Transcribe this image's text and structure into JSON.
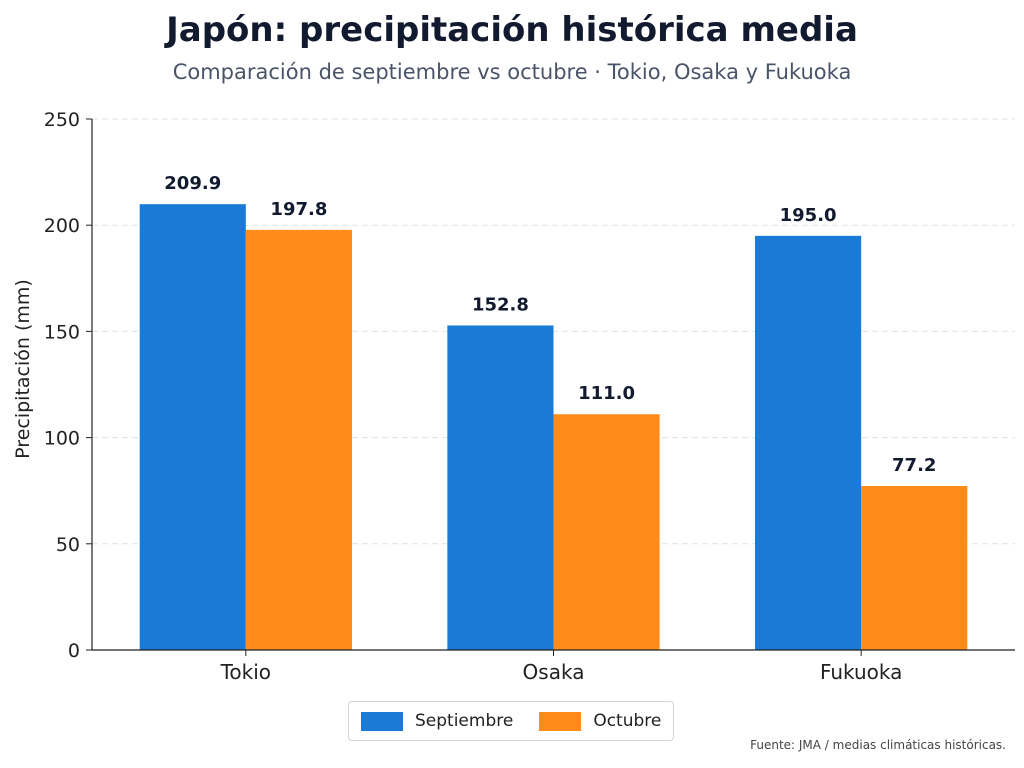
{
  "chart_data": {
    "type": "bar",
    "title": "Japón: precipitación histórica media",
    "subtitle": "Comparación de septiembre vs octubre · Tokio, Osaka y Fukuoka",
    "xlabel": "",
    "ylabel": "Precipitación (mm)",
    "ylim": [
      0,
      250
    ],
    "yticks": [
      0,
      50,
      100,
      150,
      200,
      250
    ],
    "categories": [
      "Tokio",
      "Osaka",
      "Fukuoka"
    ],
    "series": [
      {
        "name": "Septiembre",
        "values": [
          209.9,
          152.8,
          195.0
        ],
        "labels": [
          "209.9",
          "152.8",
          "195.0"
        ],
        "color": "#1a7bd6"
      },
      {
        "name": "Octubre",
        "values": [
          197.8,
          111.0,
          77.2
        ],
        "labels": [
          "197.8",
          "111.0",
          "77.2"
        ],
        "color": "#ff8c1a"
      }
    ],
    "grid": "horizontal-dashed",
    "legend_position": "bottom-center",
    "source": "Fuente: JMA / medias climáticas históricas."
  }
}
